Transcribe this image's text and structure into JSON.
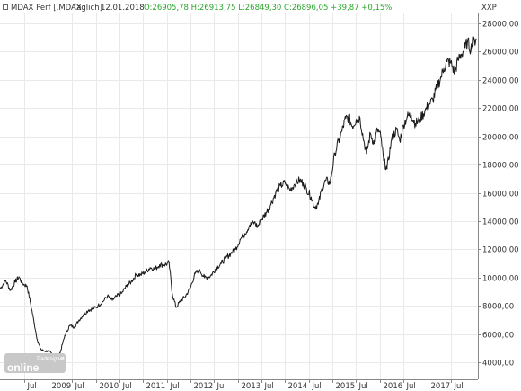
{
  "header": {
    "instrument": "MDAX Perf [.MDAX",
    "period": "Täglich]",
    "date": "12.01.2018",
    "ohlc": "O:26905,78 H:26913,75 L:26849,30 C:26896,05 +39,87 +0,15%"
  },
  "logo": {
    "brand_top": "Tradesignal",
    "brand_main": "online",
    "registered": "®"
  },
  "colors": {
    "line": "#1a1a1a",
    "positive": "#2aa52a",
    "grid": "#e9e9e9",
    "text": "#333333"
  },
  "chart_data": {
    "type": "line",
    "title": "MDAX Perf [.MDAX Täglich]",
    "ylabel": "XXP",
    "ylim": [
      2800,
      28700
    ],
    "y_ticks": [
      "4000,00",
      "6000,00",
      "8000,00",
      "10000,00",
      "12000,00",
      "14000,00",
      "16000,00",
      "18000,00",
      "20000,00",
      "22000,00",
      "24000,00",
      "26000,00",
      "28000,00"
    ],
    "x_ticks": [
      "Jul",
      "2009",
      "Jul",
      "2010",
      "Jul",
      "2011",
      "Jul",
      "2012",
      "Jul",
      "2013",
      "Jul",
      "2014",
      "Jul",
      "2015",
      "Jul",
      "2016",
      "Jul",
      "2017",
      "Jul"
    ],
    "x_tick_dates": [
      2008.5,
      2009.0,
      2009.5,
      2010.0,
      2010.5,
      2011.0,
      2011.5,
      2012.0,
      2012.5,
      2013.0,
      2013.5,
      2014.0,
      2014.5,
      2015.0,
      2015.5,
      2016.0,
      2016.5,
      2017.0,
      2017.5
    ],
    "xlim": [
      2007.98,
      2018.07
    ],
    "series": [
      {
        "x": [
          2007.98,
          2008.1,
          2008.2,
          2008.3,
          2008.38,
          2008.45,
          2008.55,
          2008.62,
          2008.7,
          2008.78,
          2008.85,
          2008.92,
          2009.0,
          2009.08,
          2009.16,
          2009.25,
          2009.35,
          2009.45,
          2009.55,
          2009.65,
          2009.75,
          2009.85,
          2009.95,
          2010.05,
          2010.15,
          2010.25,
          2010.35,
          2010.45,
          2010.55,
          2010.65,
          2010.75,
          2010.85,
          2010.95,
          2011.05,
          2011.15,
          2011.25,
          2011.35,
          2011.45,
          2011.55,
          2011.62,
          2011.7,
          2011.78,
          2011.9,
          2012.0,
          2012.1,
          2012.2,
          2012.3,
          2012.42,
          2012.55,
          2012.65,
          2012.75,
          2012.85,
          2012.95,
          2013.05,
          2013.15,
          2013.25,
          2013.35,
          2013.42,
          2013.5,
          2013.6,
          2013.7,
          2013.8,
          2013.9,
          2014.0,
          2014.1,
          2014.2,
          2014.3,
          2014.38,
          2014.45,
          2014.55,
          2014.62,
          2014.7,
          2014.78,
          2014.86,
          2014.95,
          2015.05,
          2015.15,
          2015.2,
          2015.28,
          2015.35,
          2015.42,
          2015.5,
          2015.58,
          2015.66,
          2015.72,
          2015.8,
          2015.88,
          2015.95,
          2016.02,
          2016.08,
          2016.15,
          2016.25,
          2016.35,
          2016.42,
          2016.5,
          2016.58,
          2016.66,
          2016.75,
          2016.85,
          2016.95,
          2017.05,
          2017.12,
          2017.2,
          2017.28,
          2017.35,
          2017.42,
          2017.5,
          2017.58,
          2017.65,
          2017.72,
          2017.8,
          2017.85,
          2017.92,
          2018.0,
          2018.03
        ],
        "values": [
          9200,
          9800,
          9100,
          9700,
          10050,
          9600,
          9400,
          8300,
          6800,
          5400,
          4900,
          4800,
          4800,
          4600,
          4200,
          4700,
          5900,
          6600,
          6500,
          7000,
          7400,
          7700,
          7800,
          8000,
          8300,
          8700,
          8400,
          8700,
          8900,
          9400,
          9700,
          10200,
          10200,
          10400,
          10700,
          10600,
          10900,
          10900,
          11050,
          8800,
          7900,
          8300,
          8700,
          9300,
          10300,
          10500,
          10000,
          10100,
          10700,
          11000,
          11400,
          11700,
          12000,
          12700,
          13100,
          13700,
          13900,
          13600,
          14100,
          14600,
          15200,
          16000,
          16500,
          16700,
          16200,
          16600,
          16900,
          16700,
          16300,
          15700,
          15000,
          15200,
          16300,
          16900,
          16700,
          18800,
          19900,
          20400,
          21300,
          21300,
          20700,
          21200,
          21300,
          19700,
          18800,
          20200,
          19500,
          20500,
          20000,
          18300,
          17700,
          19800,
          20500,
          19700,
          20800,
          21400,
          21500,
          20900,
          21200,
          21800,
          22300,
          22600,
          23400,
          24100,
          24800,
          25300,
          25200,
          24500,
          25400,
          25800,
          26300,
          26700,
          26200,
          26800,
          26900
        ]
      }
    ]
  }
}
